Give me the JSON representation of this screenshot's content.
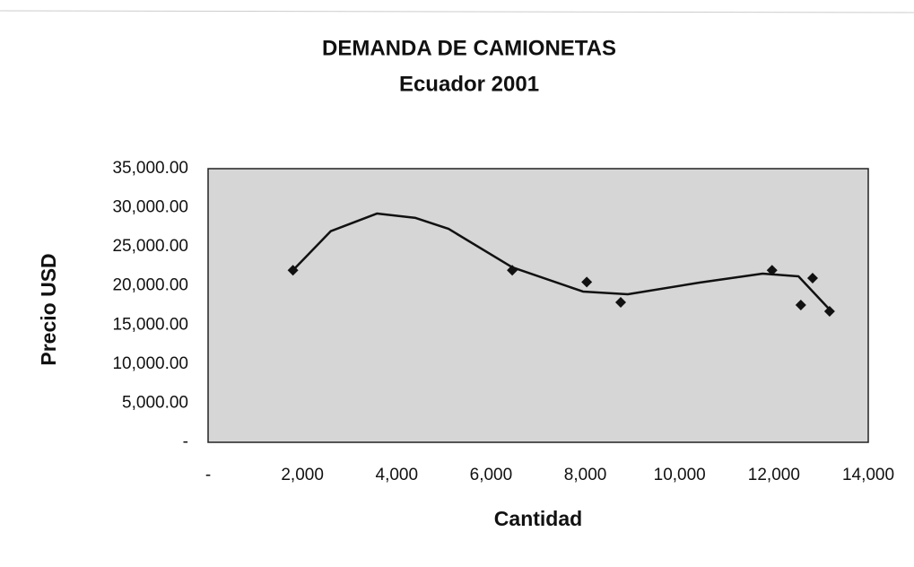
{
  "chart_data": {
    "type": "scatter",
    "title": "DEMANDA DE CAMIONETAS",
    "subtitle": "Ecuador 2001",
    "x_label": "Cantidad",
    "y_label": "Precio USD",
    "series": [
      {
        "color": "#111111",
        "x": [
          1800,
          6450,
          8030,
          8750,
          11960,
          12570,
          12820,
          13180
        ],
        "values": [
          22000,
          22000,
          20500,
          17900,
          22000,
          17560,
          21000,
          16750
        ]
      }
    ],
    "trendline": {
      "color": "#111111",
      "x": [
        1800,
        2600,
        3580,
        4400,
        5100,
        6450,
        7950,
        8900,
        10420,
        11760,
        12520,
        13180
      ],
      "values": [
        22000,
        27000,
        29260,
        28700,
        27300,
        22380,
        19280,
        18930,
        20430,
        21570,
        21230,
        16980
      ]
    },
    "xlim": [
      0,
      14000
    ],
    "xticks": [
      {
        "value": 0,
        "label": "-"
      },
      {
        "value": 2000,
        "label": "2,000"
      },
      {
        "value": 4000,
        "label": "4,000"
      },
      {
        "value": 6000,
        "label": "6,000"
      },
      {
        "value": 8000,
        "label": "8,000"
      },
      {
        "value": 10000,
        "label": "10,000"
      },
      {
        "value": 12000,
        "label": "12,000"
      },
      {
        "value": 14000,
        "label": "14,000"
      }
    ],
    "ylim": [
      0,
      35000
    ],
    "yticks": [
      {
        "value": 0,
        "label": "-"
      },
      {
        "value": 5000,
        "label": "5,000.00"
      },
      {
        "value": 10000,
        "label": "10,000.00"
      },
      {
        "value": 15000,
        "label": "15,000.00"
      },
      {
        "value": 20000,
        "label": "20,000.00"
      },
      {
        "value": 25000,
        "label": "25,000.00"
      },
      {
        "value": 30000,
        "label": "30,000.00"
      },
      {
        "value": 35000,
        "label": "35,000.00"
      }
    ],
    "plot_background": "#d6d6d6"
  }
}
